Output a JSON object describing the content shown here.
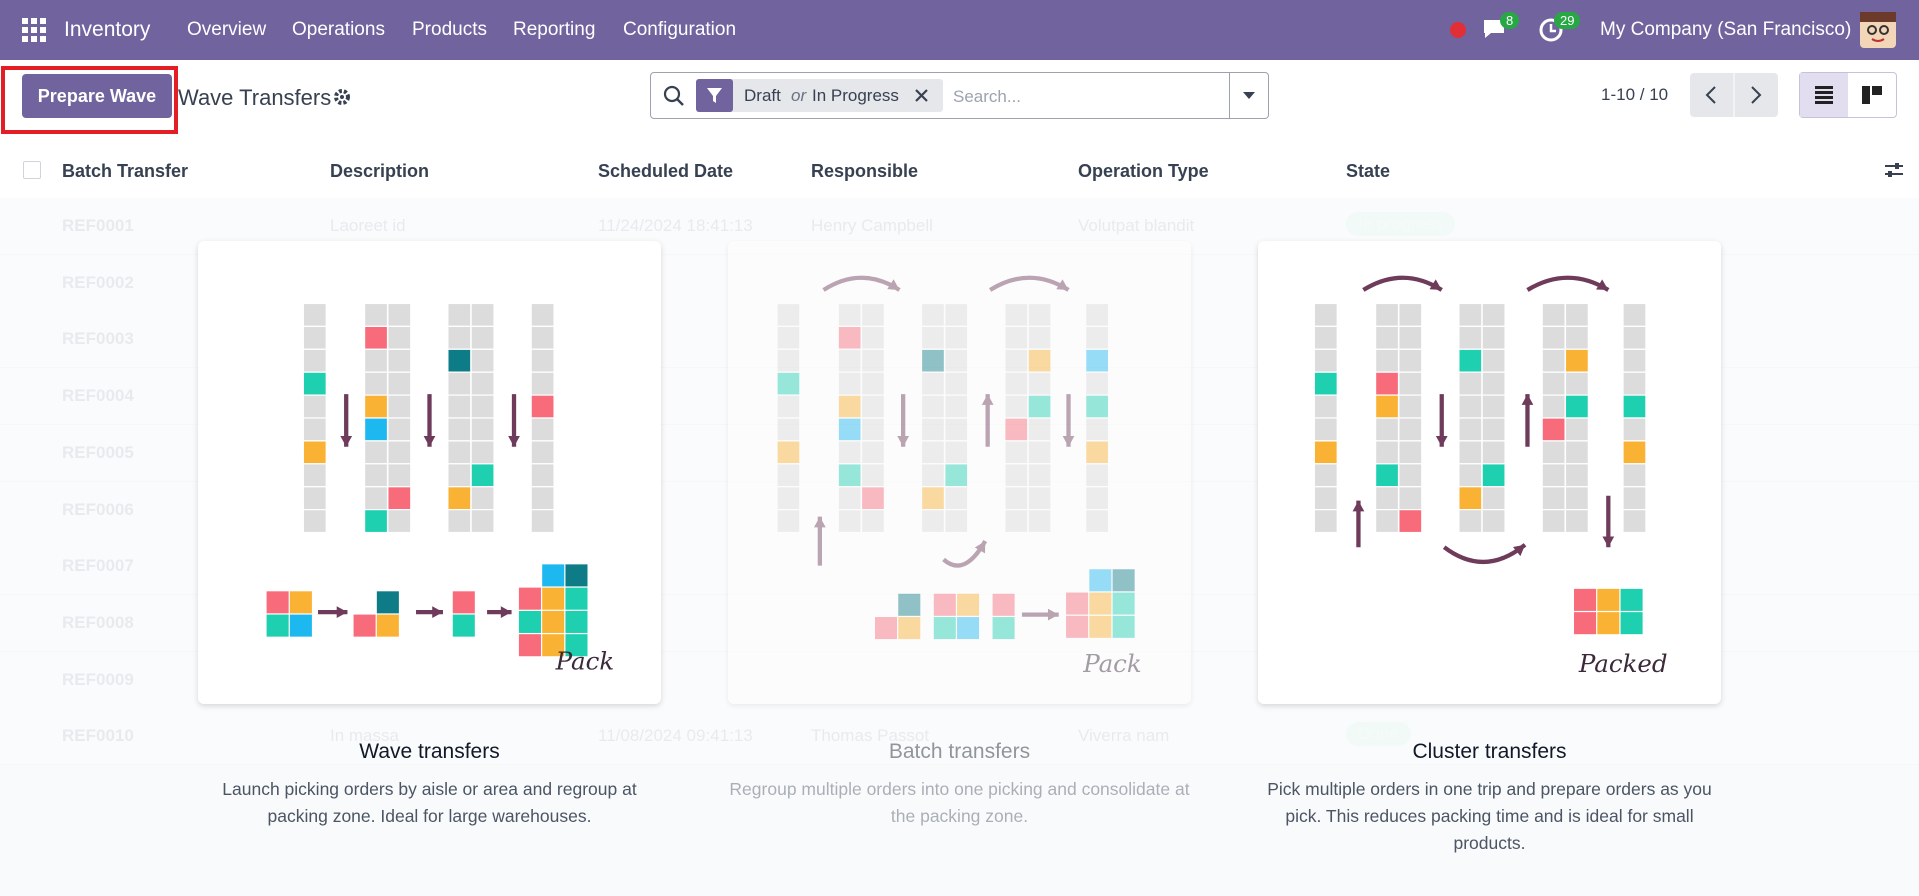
{
  "navbar": {
    "app": "Inventory",
    "menu": [
      "Overview",
      "Operations",
      "Products",
      "Reporting",
      "Configuration"
    ],
    "messages_badge": "8",
    "activities_badge": "29",
    "company": "My Company (San Francisco)"
  },
  "control_panel": {
    "button": "Prepare Wave",
    "title": "Wave Transfers",
    "facet": {
      "first": "Draft",
      "joiner": "or",
      "second": "In Progress"
    },
    "search_placeholder": "Search...",
    "pager": "1-10 / 10"
  },
  "table": {
    "headers": [
      "Batch Transfer",
      "Description",
      "Scheduled Date",
      "Responsible",
      "Operation Type",
      "State"
    ],
    "rows": [
      [
        "REF0001",
        "Laoreet id",
        "11/24/2024 18:41:13",
        "Henry Campbell",
        "Volutpat blandit",
        "In progress"
      ],
      [
        "REF0002"
      ],
      [
        "REF0003"
      ],
      [
        "REF0004"
      ],
      [
        "REF0005"
      ],
      [
        "REF0006"
      ],
      [
        "REF0007"
      ],
      [
        "REF0008"
      ],
      [
        "REF0009"
      ],
      [
        "REF0010",
        "In massa",
        "11/08/2024 09:41:13",
        "Thomas Passot",
        "Viverra nam",
        "Done"
      ]
    ]
  },
  "helper": [
    {
      "title": "Wave transfers",
      "description": "Launch picking orders by aisle or area and regroup at packing zone. Ideal for large warehouses.",
      "caption": "Pack"
    },
    {
      "title": "Batch transfers",
      "description": "Regroup multiple orders into one picking and consolidate at the packing zone.",
      "caption": "Pack"
    },
    {
      "title": "Cluster transfers",
      "description": "Pick multiple orders in one trip and prepare orders as you pick. This reduces packing time and is ideal for small products.",
      "caption": "Packed"
    }
  ]
}
